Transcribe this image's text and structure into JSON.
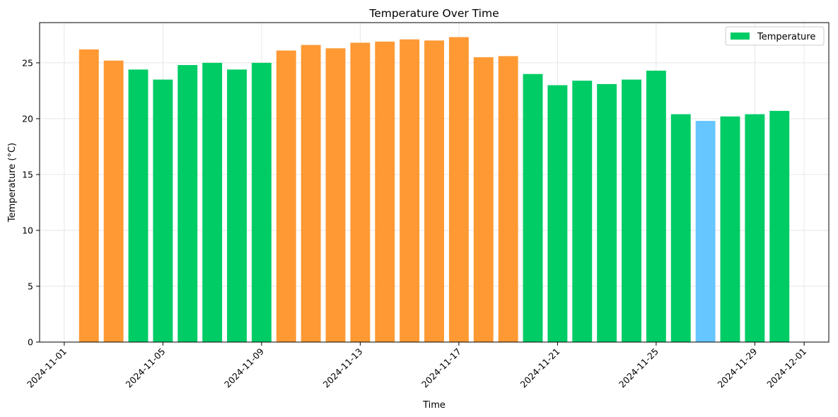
{
  "chart_data": {
    "type": "bar",
    "title": "Temperature Over Time",
    "xlabel": "Time",
    "ylabel": "Temperature (°C)",
    "x": [
      "2024-11-02",
      "2024-11-03",
      "2024-11-04",
      "2024-11-05",
      "2024-11-06",
      "2024-11-07",
      "2024-11-08",
      "2024-11-09",
      "2024-11-10",
      "2024-11-11",
      "2024-11-12",
      "2024-11-13",
      "2024-11-14",
      "2024-11-15",
      "2024-11-16",
      "2024-11-17",
      "2024-11-18",
      "2024-11-19",
      "2024-11-20",
      "2024-11-21",
      "2024-11-22",
      "2024-11-23",
      "2024-11-24",
      "2024-11-25",
      "2024-11-26",
      "2024-11-27",
      "2024-11-28",
      "2024-11-29",
      "2024-11-30"
    ],
    "values": [
      26.2,
      25.2,
      24.4,
      23.5,
      24.8,
      25.0,
      24.4,
      25.0,
      26.1,
      26.6,
      26.3,
      26.8,
      26.9,
      27.1,
      27.0,
      27.3,
      25.5,
      25.6,
      24.0,
      23.0,
      23.4,
      23.1,
      23.5,
      24.3,
      20.4,
      19.8,
      20.2,
      20.4,
      20.7
    ],
    "bar_colors": [
      "#ff9933",
      "#ff9933",
      "#00cc66",
      "#00cc66",
      "#00cc66",
      "#00cc66",
      "#00cc66",
      "#00cc66",
      "#ff9933",
      "#ff9933",
      "#ff9933",
      "#ff9933",
      "#ff9933",
      "#ff9933",
      "#ff9933",
      "#ff9933",
      "#ff9933",
      "#ff9933",
      "#00cc66",
      "#00cc66",
      "#00cc66",
      "#00cc66",
      "#00cc66",
      "#00cc66",
      "#00cc66",
      "#66c6ff",
      "#00cc66",
      "#00cc66",
      "#00cc66"
    ],
    "xlim": [
      "2024-10-31",
      "2024-12-02"
    ],
    "ylim": [
      0,
      28.6
    ],
    "x_ticks": [
      "2024-11-01",
      "2024-11-05",
      "2024-11-09",
      "2024-11-13",
      "2024-11-17",
      "2024-11-21",
      "2024-11-25",
      "2024-11-29",
      "2024-12-01"
    ],
    "y_ticks": [
      0,
      5,
      10,
      15,
      20,
      25
    ],
    "grid": true,
    "legend": {
      "label": "Temperature",
      "color": "#00cc66",
      "position": "top-right"
    }
  }
}
